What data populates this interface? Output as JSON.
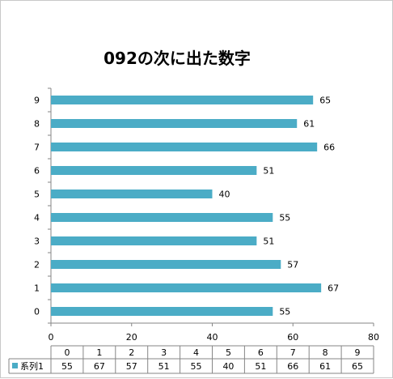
{
  "chart_data": {
    "type": "bar",
    "orientation": "horizontal",
    "title": "092の次に出た数字",
    "categories": [
      "0",
      "1",
      "2",
      "3",
      "4",
      "5",
      "6",
      "7",
      "8",
      "9"
    ],
    "series": [
      {
        "name": "系列1",
        "values": [
          55,
          67,
          57,
          51,
          55,
          40,
          51,
          66,
          61,
          65
        ]
      }
    ],
    "xlim": [
      0,
      80
    ],
    "xticks": [
      "0",
      "20",
      "40",
      "60",
      "80"
    ],
    "grid": false,
    "legend": "data-table-left",
    "data_table": true,
    "colors": {
      "series": "#4BACC6"
    }
  }
}
